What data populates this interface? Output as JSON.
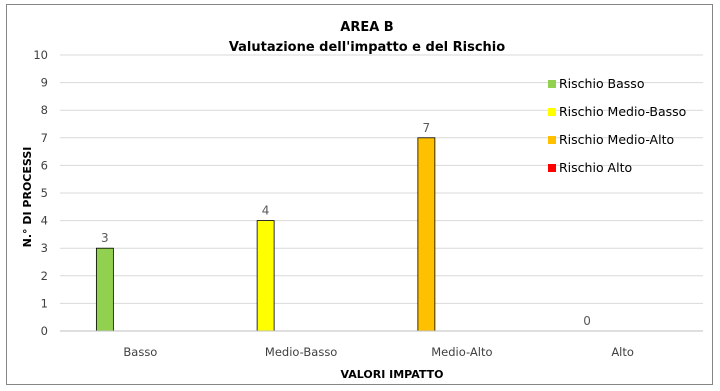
{
  "chart_data": {
    "type": "bar",
    "title": "AREA B",
    "subtitle": "Valutazione dell'impatto e del Rischio",
    "xlabel": "VALORI IMPATTO",
    "ylabel": "N.° DI PROCESSI",
    "ylim": [
      0,
      10
    ],
    "yticks": [
      0,
      1,
      2,
      3,
      4,
      5,
      6,
      7,
      8,
      9,
      10
    ],
    "grid": true,
    "legend_position": "right",
    "categories": [
      "Basso",
      "Medio-Basso",
      "Medio-Alto",
      "Alto"
    ],
    "values": [
      3,
      4,
      7,
      0
    ],
    "series": [
      {
        "name": "Rischio Basso",
        "color": "#92D050",
        "category": "Basso",
        "value": 3
      },
      {
        "name": "Rischio Medio-Basso",
        "color": "#FFFF00",
        "category": "Medio-Basso",
        "value": 4
      },
      {
        "name": "Rischio Medio-Alto",
        "color": "#FFC000",
        "category": "Medio-Alto",
        "value": 7
      },
      {
        "name": "Rischio Alto",
        "color": "#FF0000",
        "category": "Alto",
        "value": 0
      }
    ],
    "data_labels": [
      "3",
      "4",
      "7",
      "0"
    ]
  }
}
